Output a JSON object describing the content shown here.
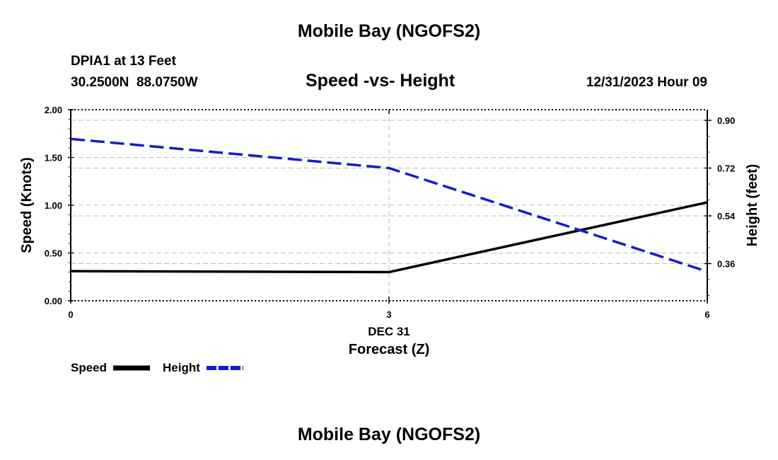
{
  "header": {
    "title": "Mobile Bay (NGOFS2)",
    "station": "DPIA1 at 13 Feet",
    "coords": "30.2500N  88.0750W",
    "chart_title": "Speed -vs- Height",
    "datetime": "12/31/2023 Hour 09"
  },
  "footer": {
    "title": "Mobile Bay (NGOFS2)"
  },
  "colors": {
    "speed": "#000000",
    "height": "#1a1acc",
    "grid": "#bbbbbb"
  },
  "chart_data": {
    "type": "line",
    "title": "Speed -vs- Height",
    "x": [
      0,
      3,
      6
    ],
    "xticks": [
      "0",
      "3",
      "6"
    ],
    "xlabel_date": "DEC 31",
    "xlabel": "Forecast (Z)",
    "xlim": [
      0,
      6
    ],
    "ylabel": "Speed (Knots)",
    "ylim": [
      0,
      2
    ],
    "yticks": [
      "0.00",
      "0.50",
      "1.00",
      "1.50",
      "2.00"
    ],
    "ytick_values": [
      0,
      0.5,
      1,
      1.5,
      2
    ],
    "y2label": "Height (feet)",
    "y2lim": [
      0.22,
      0.94
    ],
    "y2ticks": [
      "0.36",
      "0.54",
      "0.72",
      "0.90"
    ],
    "y2tick_values": [
      0.36,
      0.54,
      0.72,
      0.9
    ],
    "series": [
      {
        "name": "Speed",
        "axis": "left",
        "style": "solid",
        "values": [
          0.31,
          0.3,
          1.03
        ]
      },
      {
        "name": "Height",
        "axis": "right",
        "style": "dashed",
        "values": [
          0.83,
          0.72,
          0.33
        ]
      }
    ],
    "legend": {
      "placement": "bottom-left",
      "entries": [
        "Speed",
        "Height"
      ]
    }
  }
}
